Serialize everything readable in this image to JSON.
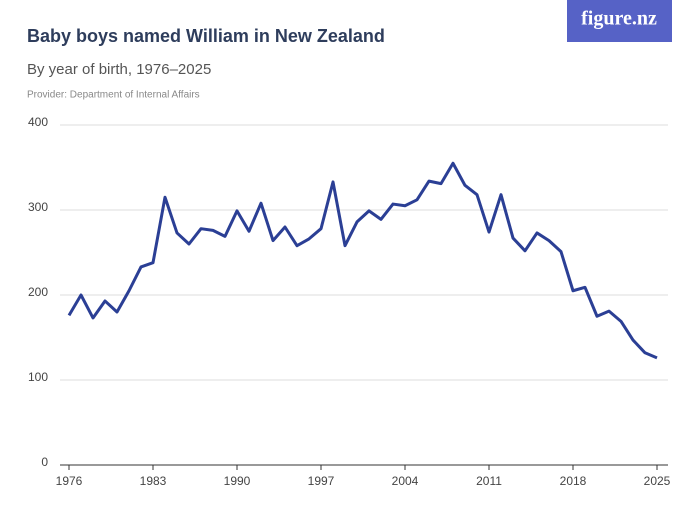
{
  "logo": "figure.nz",
  "chart_data": {
    "type": "line",
    "title": "Baby boys named William in New Zealand",
    "subtitle": "By year of birth, 1976–2025",
    "caption": "Provider: Department of Internal Affairs",
    "x": [
      1976,
      1977,
      1978,
      1979,
      1980,
      1981,
      1982,
      1983,
      1984,
      1985,
      1986,
      1987,
      1988,
      1989,
      1990,
      1991,
      1992,
      1993,
      1994,
      1995,
      1996,
      1997,
      1998,
      1999,
      2000,
      2001,
      2002,
      2003,
      2004,
      2005,
      2006,
      2007,
      2008,
      2009,
      2010,
      2011,
      2012,
      2013,
      2014,
      2015,
      2016,
      2017,
      2018,
      2019,
      2020,
      2021,
      2022,
      2023,
      2024,
      2025
    ],
    "series": [
      {
        "name": "William",
        "color": "#2b3f95",
        "values": [
          176,
          200,
          173,
          193,
          180,
          205,
          233,
          238,
          315,
          273,
          260,
          278,
          276,
          269,
          299,
          275,
          308,
          264,
          280,
          258,
          266,
          278,
          333,
          258,
          286,
          299,
          289,
          307,
          305,
          312,
          334,
          331,
          355,
          329,
          318,
          274,
          318,
          267,
          252,
          273,
          264,
          251,
          205,
          209,
          175,
          181,
          169,
          147,
          132,
          126
        ]
      }
    ],
    "xlim": [
      1976,
      2025
    ],
    "xticks": [
      1976,
      1983,
      1990,
      1997,
      2004,
      2011,
      2018,
      2025
    ],
    "ylim": [
      0,
      400
    ],
    "yticks": [
      0,
      100,
      200,
      300,
      400
    ],
    "grid": true
  }
}
